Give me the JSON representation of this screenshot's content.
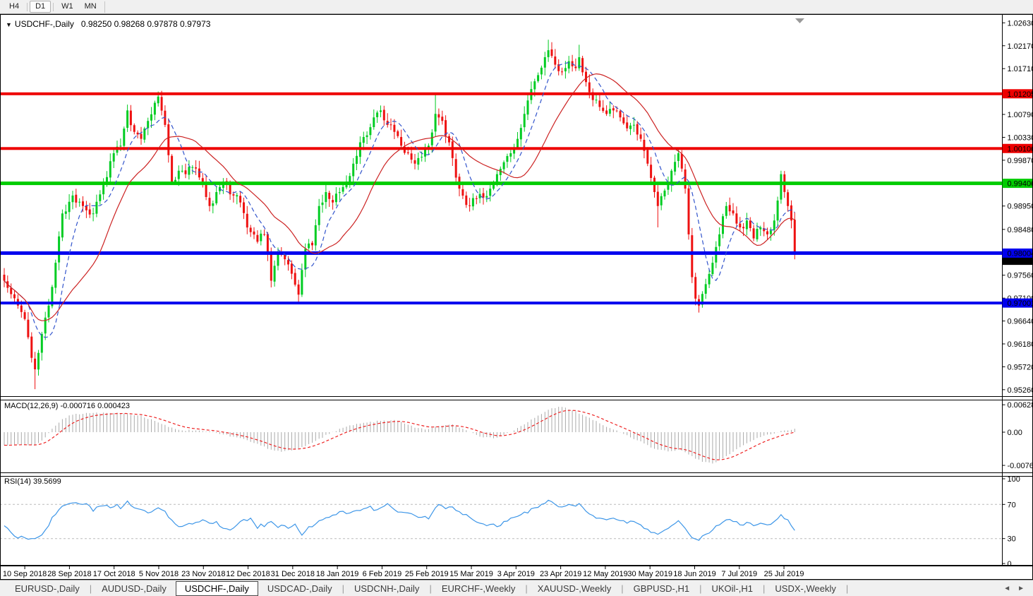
{
  "toolbar": {
    "timeframes": [
      {
        "label": "H4",
        "active": false
      },
      {
        "label": "D1",
        "active": true
      },
      {
        "label": "W1",
        "active": false
      },
      {
        "label": "MN",
        "active": false
      }
    ]
  },
  "chart": {
    "title_symbol": "USDCHF-,Daily",
    "title_ohlc": "0.98250 0.98268 0.97878 0.97973",
    "macd_label": "MACD(12,26,9) -0.000716 0.000423",
    "rsi_label": "RSI(14) 39.5699"
  },
  "chart_data": {
    "type": "candlestick",
    "symbol": "USDCHF",
    "timeframe": "Daily",
    "ohlc_display": [
      "0.98250",
      "0.98268",
      "0.97878",
      "0.97973"
    ],
    "x_labels": [
      "10 Sep 2018",
      "28 Sep 2018",
      "17 Oct 2018",
      "5 Nov 2018",
      "23 Nov 2018",
      "12 Dec 2018",
      "31 Dec 2018",
      "18 Jan 2019",
      "6 Feb 2019",
      "25 Feb 2019",
      "15 Mar 2019",
      "3 Apr 2019",
      "23 Apr 2019",
      "12 May 2019",
      "30 May 2019",
      "18 Jun 2019",
      "7 Jul 2019",
      "25 Jul 2019"
    ],
    "y_ticks": [
      "1.02630",
      "1.02170",
      "1.01710",
      "1.00790",
      "1.00330",
      "0.99870",
      "0.98950",
      "0.98480",
      "0.97560",
      "0.97100",
      "0.96640",
      "0.96180",
      "0.95720",
      "0.95260"
    ],
    "y_range": [
      0.9513,
      1.0272
    ],
    "levels": [
      {
        "label": "1.01205",
        "color": "#EE0000",
        "thickness": 4
      },
      {
        "label": "1.00106",
        "color": "#EE0000",
        "thickness": 4
      },
      {
        "label": "0.99406",
        "color": "#00CC00",
        "thickness": 5
      },
      {
        "label": "0.98004",
        "color": "#0000EE",
        "thickness": 5
      },
      {
        "label": "0.97001",
        "color": "#0000EE",
        "thickness": 4
      }
    ],
    "current_price": "0.97973",
    "candle_count": 232,
    "close_anchors": [
      [
        0,
        0.9745
      ],
      [
        2,
        0.9718
      ],
      [
        4,
        0.9695
      ],
      [
        6,
        0.9668
      ],
      [
        8,
        0.959
      ],
      [
        9,
        0.9567
      ],
      [
        10,
        0.96
      ],
      [
        11,
        0.9638
      ],
      [
        13,
        0.9695
      ],
      [
        15,
        0.9781
      ],
      [
        17,
        0.988
      ],
      [
        20,
        0.9916
      ],
      [
        23,
        0.9895
      ],
      [
        26,
        0.988
      ],
      [
        29,
        0.9937
      ],
      [
        32,
        1.0001
      ],
      [
        34,
        1.0016
      ],
      [
        36,
        1.0087
      ],
      [
        38,
        1.0044
      ],
      [
        40,
        1.003
      ],
      [
        42,
        1.0066
      ],
      [
        45,
        1.0115
      ],
      [
        47,
        1.0058
      ],
      [
        49,
        0.9944
      ],
      [
        51,
        0.9966
      ],
      [
        53,
        0.9959
      ],
      [
        55,
        0.9973
      ],
      [
        58,
        0.9944
      ],
      [
        60,
        0.9895
      ],
      [
        62,
        0.9923
      ],
      [
        64,
        0.9944
      ],
      [
        67,
        0.9916
      ],
      [
        69,
        0.9902
      ],
      [
        71,
        0.9852
      ],
      [
        74,
        0.9823
      ],
      [
        76,
        0.9838
      ],
      [
        78,
        0.9745
      ],
      [
        80,
        0.9802
      ],
      [
        82,
        0.9788
      ],
      [
        84,
        0.9759
      ],
      [
        86,
        0.9717
      ],
      [
        88,
        0.9809
      ],
      [
        90,
        0.9816
      ],
      [
        92,
        0.9895
      ],
      [
        94,
        0.9923
      ],
      [
        96,
        0.9902
      ],
      [
        98,
        0.9923
      ],
      [
        100,
        0.9944
      ],
      [
        102,
        0.998
      ],
      [
        104,
        1.0023
      ],
      [
        106,
        1.0037
      ],
      [
        108,
        1.0073
      ],
      [
        110,
        1.0087
      ],
      [
        112,
        1.0058
      ],
      [
        114,
        1.0044
      ],
      [
        116,
        1.0016
      ],
      [
        118,
        1.0001
      ],
      [
        120,
        0.998
      ],
      [
        122,
        0.9994
      ],
      [
        124,
        1.0016
      ],
      [
        126,
        1.008
      ],
      [
        128,
        1.0066
      ],
      [
        130,
        1.0023
      ],
      [
        132,
        0.9952
      ],
      [
        134,
        0.9916
      ],
      [
        136,
        0.9895
      ],
      [
        138,
        0.9909
      ],
      [
        140,
        0.9912
      ],
      [
        142,
        0.993
      ],
      [
        144,
        0.9959
      ],
      [
        146,
        0.9983
      ],
      [
        148,
        1.0001
      ],
      [
        150,
        1.003
      ],
      [
        152,
        1.008
      ],
      [
        154,
        1.013
      ],
      [
        156,
        1.0158
      ],
      [
        158,
        1.0194
      ],
      [
        159,
        1.0208
      ],
      [
        161,
        1.0179
      ],
      [
        163,
        1.0165
      ],
      [
        165,
        1.0186
      ],
      [
        167,
        1.0172
      ],
      [
        168,
        1.0194
      ],
      [
        170,
        1.0144
      ],
      [
        172,
        1.0108
      ],
      [
        174,
        1.0094
      ],
      [
        176,
        1.008
      ],
      [
        178,
        1.0087
      ],
      [
        180,
        1.0073
      ],
      [
        182,
        1.0051
      ],
      [
        184,
        1.0058
      ],
      [
        186,
        1.003
      ],
      [
        188,
        0.998
      ],
      [
        190,
        0.9923
      ],
      [
        191,
        0.9895
      ],
      [
        193,
        0.9926
      ],
      [
        195,
        0.9966
      ],
      [
        197,
        1.0001
      ],
      [
        199,
        0.993
      ],
      [
        200,
        0.9838
      ],
      [
        201,
        0.9752
      ],
      [
        202,
        0.9709
      ],
      [
        203,
        0.9695
      ],
      [
        205,
        0.9738
      ],
      [
        207,
        0.9781
      ],
      [
        209,
        0.9838
      ],
      [
        211,
        0.9895
      ],
      [
        213,
        0.988
      ],
      [
        215,
        0.9852
      ],
      [
        217,
        0.9866
      ],
      [
        219,
        0.983
      ],
      [
        221,
        0.9852
      ],
      [
        223,
        0.9838
      ],
      [
        225,
        0.9866
      ],
      [
        227,
        0.9959
      ],
      [
        229,
        0.9895
      ],
      [
        230,
        0.9866
      ],
      [
        231,
        0.97973
      ]
    ],
    "wick_overrides": [
      {
        "i": 9,
        "low": 0.9527
      },
      {
        "i": 45,
        "high": 1.0125
      },
      {
        "i": 86,
        "low": 0.9702
      },
      {
        "i": 110,
        "high": 1.0097
      },
      {
        "i": 126,
        "high": 1.0123
      },
      {
        "i": 159,
        "high": 1.0229
      },
      {
        "i": 168,
        "high": 1.0219
      },
      {
        "i": 191,
        "low": 0.9852
      },
      {
        "i": 197,
        "high": 1.0011
      },
      {
        "i": 203,
        "low": 0.9681
      },
      {
        "i": 231,
        "low": 0.9788
      }
    ],
    "moving_averages": [
      {
        "name": "ma-fast",
        "period": 8,
        "color": "#3355CC",
        "style": "dashed"
      },
      {
        "name": "ma-slow",
        "period": 21,
        "color": "#CC2222",
        "style": "solid"
      }
    ],
    "macd": {
      "label": "MACD(12,26,9)",
      "values": [
        "-0.000716",
        "0.000423"
      ],
      "y_ticks": [
        "0.006286",
        "0.00",
        "-0.00762"
      ],
      "hist_color": "#AAAAAA",
      "signal_color": "#EE2222",
      "hist_anchors": [
        [
          0,
          -0.003
        ],
        [
          5,
          -0.0028
        ],
        [
          9,
          -0.003
        ],
        [
          12,
          -0.0012
        ],
        [
          14,
          0.0008
        ],
        [
          17,
          0.003
        ],
        [
          20,
          0.004
        ],
        [
          24,
          0.0044
        ],
        [
          30,
          0.0044
        ],
        [
          36,
          0.0042
        ],
        [
          40,
          0.0038
        ],
        [
          44,
          0.0026
        ],
        [
          48,
          0.0012
        ],
        [
          52,
          0.0004
        ],
        [
          56,
          0.0004
        ],
        [
          60,
          0.0002
        ],
        [
          63,
          -0.0004
        ],
        [
          68,
          -0.0012
        ],
        [
          73,
          -0.0025
        ],
        [
          78,
          -0.004
        ],
        [
          81,
          -0.0045
        ],
        [
          84,
          -0.0042
        ],
        [
          88,
          -0.0032
        ],
        [
          92,
          -0.0015
        ],
        [
          95,
          -0.0004
        ],
        [
          98,
          0.0008
        ],
        [
          102,
          0.0016
        ],
        [
          106,
          0.0022
        ],
        [
          110,
          0.0026
        ],
        [
          114,
          0.0028
        ],
        [
          117,
          0.002
        ],
        [
          120,
          0.001
        ],
        [
          123,
          0.0006
        ],
        [
          127,
          0.0014
        ],
        [
          131,
          0.0018
        ],
        [
          134,
          0.0008
        ],
        [
          137,
          -0.0002
        ],
        [
          140,
          -0.0012
        ],
        [
          143,
          -0.0014
        ],
        [
          146,
          -0.0006
        ],
        [
          149,
          0.0004
        ],
        [
          152,
          0.0018
        ],
        [
          156,
          0.0038
        ],
        [
          160,
          0.0055
        ],
        [
          163,
          0.0058
        ],
        [
          166,
          0.005
        ],
        [
          169,
          0.004
        ],
        [
          172,
          0.0028
        ],
        [
          175,
          0.0016
        ],
        [
          178,
          0.0006
        ],
        [
          181,
          -0.0004
        ],
        [
          184,
          -0.0016
        ],
        [
          187,
          -0.0026
        ],
        [
          190,
          -0.0038
        ],
        [
          194,
          -0.0044
        ],
        [
          197,
          -0.004
        ],
        [
          199,
          -0.0046
        ],
        [
          201,
          -0.0055
        ],
        [
          204,
          -0.0068
        ],
        [
          207,
          -0.0072
        ],
        [
          210,
          -0.006
        ],
        [
          213,
          -0.0045
        ],
        [
          216,
          -0.003
        ],
        [
          219,
          -0.0018
        ],
        [
          222,
          -0.0008
        ],
        [
          225,
          -0.0003
        ],
        [
          228,
          0.0004
        ],
        [
          231,
          0.0008
        ]
      ]
    },
    "rsi": {
      "label": "RSI(14)",
      "value": "39.5699",
      "y_ticks": [
        "100",
        "70",
        "30",
        "0"
      ],
      "levels": [
        70,
        30
      ],
      "color": "#3D96E8",
      "anchors": [
        [
          0,
          45
        ],
        [
          3,
          33
        ],
        [
          6,
          31
        ],
        [
          9,
          30
        ],
        [
          10,
          32
        ],
        [
          12,
          40
        ],
        [
          13,
          45
        ],
        [
          14,
          55
        ],
        [
          16,
          64
        ],
        [
          17,
          68
        ],
        [
          19,
          71
        ],
        [
          21,
          72
        ],
        [
          23,
          70
        ],
        [
          25,
          68
        ],
        [
          26,
          62
        ],
        [
          28,
          68
        ],
        [
          30,
          69
        ],
        [
          31,
          66
        ],
        [
          33,
          70
        ],
        [
          34,
          65
        ],
        [
          36,
          74
        ],
        [
          38,
          66
        ],
        [
          40,
          64
        ],
        [
          42,
          60
        ],
        [
          44,
          64
        ],
        [
          45,
          66
        ],
        [
          47,
          62
        ],
        [
          48,
          55
        ],
        [
          50,
          47
        ],
        [
          51,
          44
        ],
        [
          53,
          46
        ],
        [
          55,
          47
        ],
        [
          56,
          49
        ],
        [
          58,
          52
        ],
        [
          60,
          48
        ],
        [
          62,
          50
        ],
        [
          64,
          42
        ],
        [
          66,
          40
        ],
        [
          68,
          46
        ],
        [
          69,
          50
        ],
        [
          72,
          54
        ],
        [
          74,
          42
        ],
        [
          75,
          47
        ],
        [
          76,
          44
        ],
        [
          78,
          50
        ],
        [
          80,
          43
        ],
        [
          82,
          45
        ],
        [
          83,
          42
        ],
        [
          85,
          47
        ],
        [
          86,
          40
        ],
        [
          87,
          34
        ],
        [
          89,
          44
        ],
        [
          91,
          47
        ],
        [
          93,
          52
        ],
        [
          95,
          55
        ],
        [
          97,
          58
        ],
        [
          99,
          62
        ],
        [
          101,
          60
        ],
        [
          103,
          63
        ],
        [
          105,
          65
        ],
        [
          107,
          68
        ],
        [
          108,
          63
        ],
        [
          110,
          66
        ],
        [
          112,
          71
        ],
        [
          114,
          64
        ],
        [
          116,
          61
        ],
        [
          118,
          60
        ],
        [
          120,
          57
        ],
        [
          122,
          55
        ],
        [
          124,
          53
        ],
        [
          126,
          66
        ],
        [
          127,
          70
        ],
        [
          129,
          65
        ],
        [
          131,
          67
        ],
        [
          132,
          63
        ],
        [
          134,
          58
        ],
        [
          136,
          55
        ],
        [
          137,
          52
        ],
        [
          139,
          48
        ],
        [
          141,
          45
        ],
        [
          143,
          47
        ],
        [
          144,
          44
        ],
        [
          146,
          50
        ],
        [
          148,
          54
        ],
        [
          150,
          56
        ],
        [
          151,
          58
        ],
        [
          153,
          60
        ],
        [
          155,
          66
        ],
        [
          157,
          70
        ],
        [
          159,
          75
        ],
        [
          161,
          70
        ],
        [
          163,
          67
        ],
        [
          165,
          70
        ],
        [
          167,
          68
        ],
        [
          168,
          71
        ],
        [
          170,
          62
        ],
        [
          172,
          57
        ],
        [
          174,
          54
        ],
        [
          176,
          52
        ],
        [
          178,
          54
        ],
        [
          180,
          51
        ],
        [
          182,
          48
        ],
        [
          184,
          50
        ],
        [
          186,
          46
        ],
        [
          188,
          41
        ],
        [
          190,
          37
        ],
        [
          191,
          35
        ],
        [
          193,
          40
        ],
        [
          195,
          45
        ],
        [
          197,
          51
        ],
        [
          199,
          42
        ],
        [
          200,
          36
        ],
        [
          201,
          31
        ],
        [
          203,
          28
        ],
        [
          205,
          35
        ],
        [
          207,
          40
        ],
        [
          209,
          46
        ],
        [
          211,
          52
        ],
        [
          213,
          50
        ],
        [
          215,
          46
        ],
        [
          217,
          49
        ],
        [
          219,
          45
        ],
        [
          221,
          48
        ],
        [
          223,
          46
        ],
        [
          225,
          50
        ],
        [
          227,
          58
        ],
        [
          229,
          52
        ],
        [
          230,
          45
        ],
        [
          231,
          39.57
        ]
      ]
    },
    "colors": {
      "up": "#00CC22",
      "down": "#EE1111",
      "background": "#FFFFFF"
    }
  },
  "tabs": {
    "items": [
      {
        "label": "EURUSD-,Daily",
        "active": false
      },
      {
        "label": "AUDUSD-,Daily",
        "active": false
      },
      {
        "label": "USDCHF-,Daily",
        "active": true
      },
      {
        "label": "USDCAD-,Daily",
        "active": false
      },
      {
        "label": "USDCNH-,Daily",
        "active": false
      },
      {
        "label": "EURCHF-,Weekly",
        "active": false
      },
      {
        "label": "XAUUSD-,Weekly",
        "active": false
      },
      {
        "label": "GBPUSD-,H1",
        "active": false
      },
      {
        "label": "UKOil-,H1",
        "active": false
      },
      {
        "label": "USDX-,Weekly",
        "active": false
      }
    ],
    "scroll_left": "◄",
    "scroll_right": "►"
  }
}
